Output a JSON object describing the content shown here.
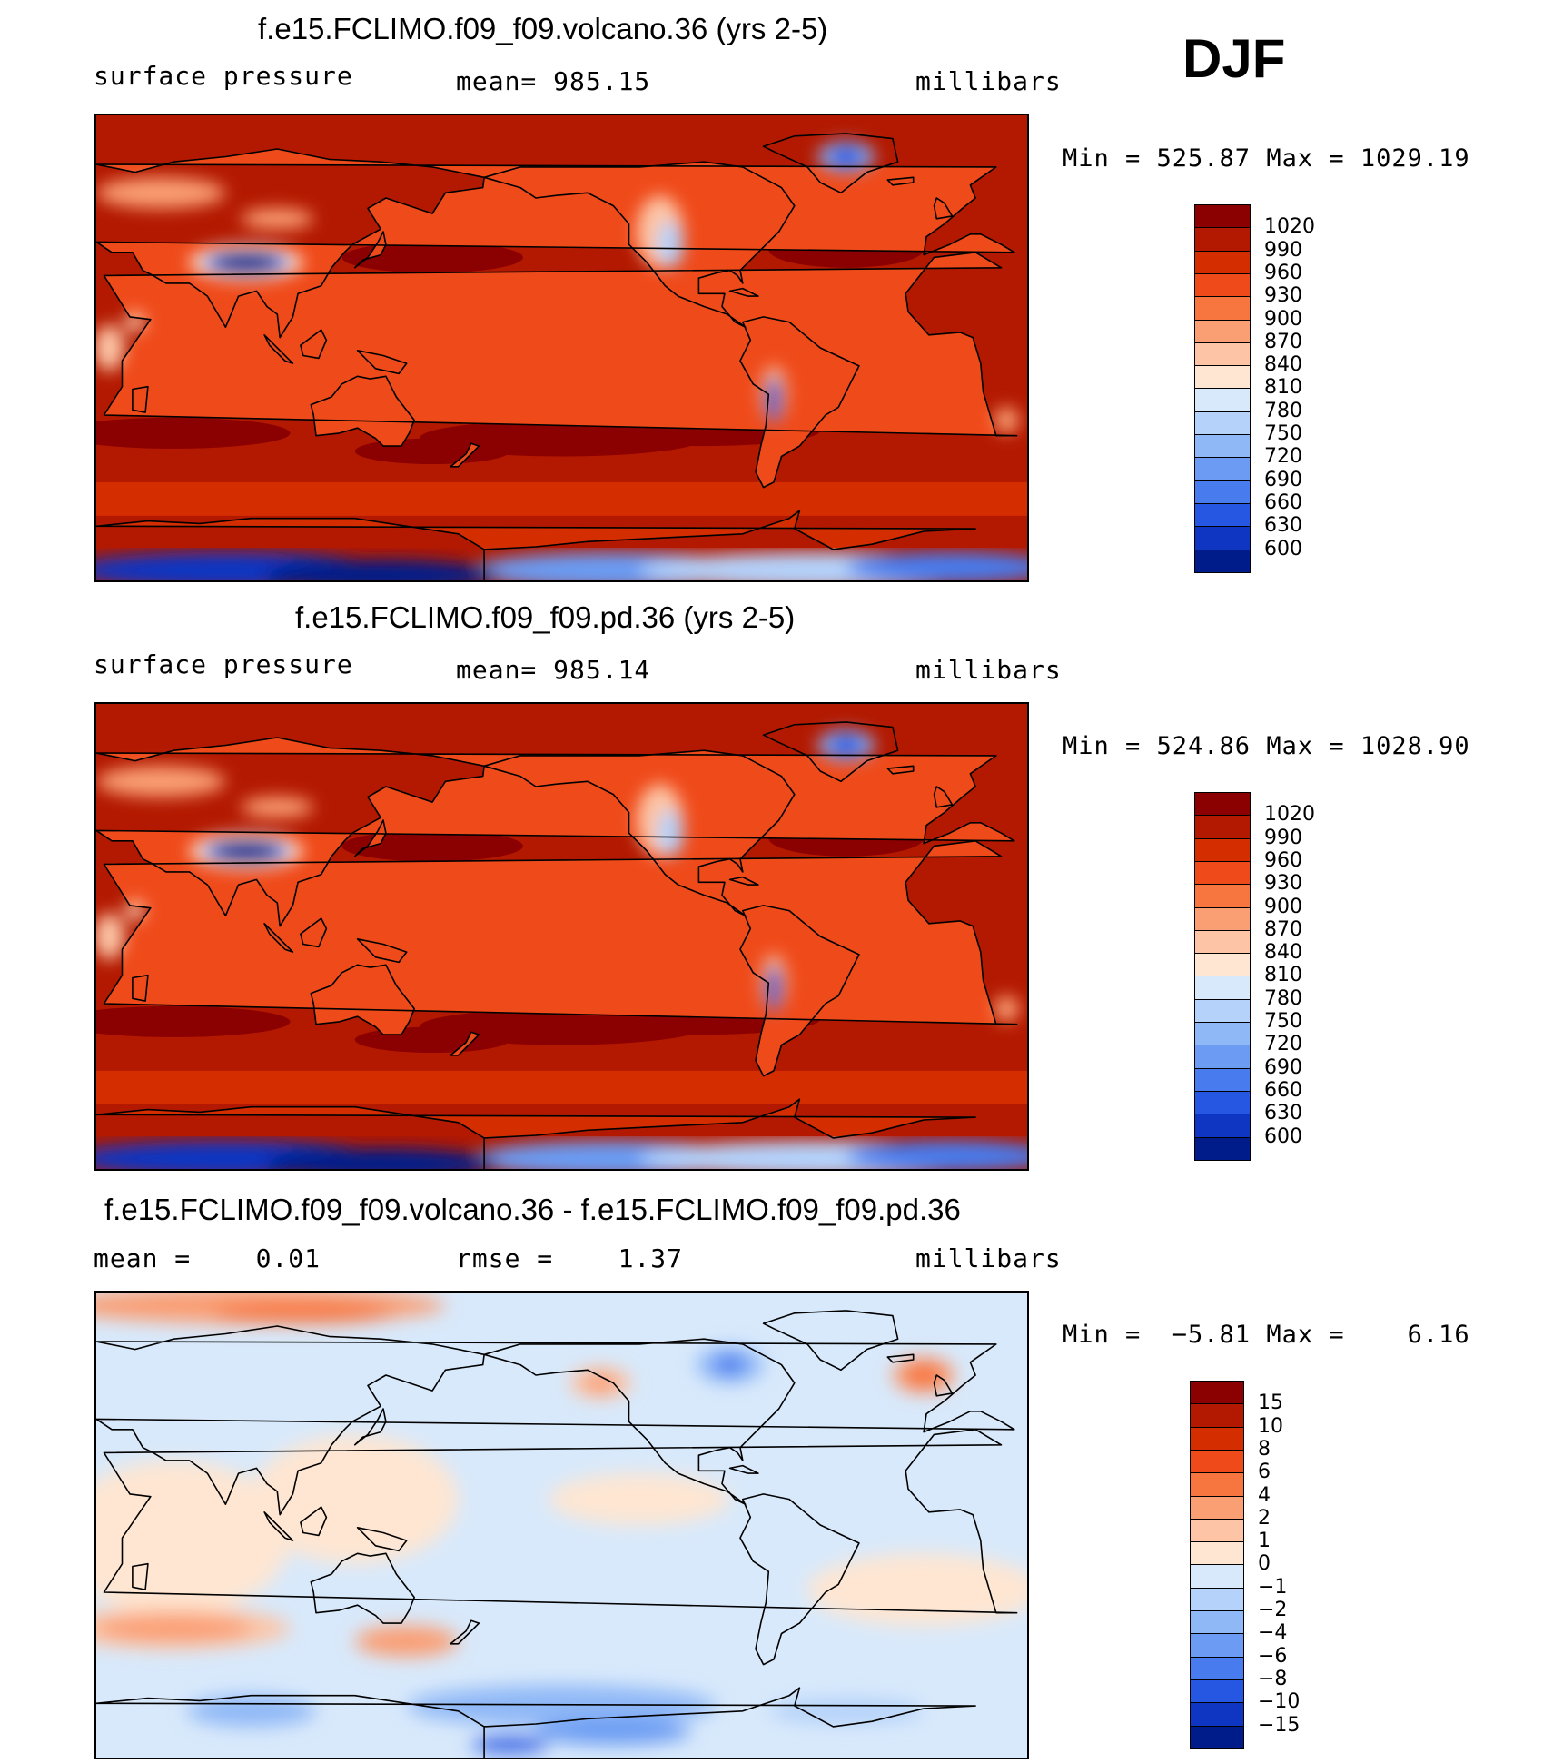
{
  "season": "DJF",
  "panels": [
    {
      "title": "f.e15.FCLIMO.f09_f09.volcano.36 (yrs 2-5)",
      "left_label": "surface pressure",
      "center_label": "mean= 985.15",
      "right_label": "millibars",
      "minmax": "Min = 525.87 Max = 1029.19",
      "kind": "abs",
      "colorbar": {
        "labels": [
          "1020",
          "990",
          "960",
          "930",
          "900",
          "870",
          "840",
          "810",
          "780",
          "750",
          "720",
          "690",
          "660",
          "630",
          "600"
        ],
        "colors": [
          "#8b0000",
          "#b31900",
          "#d42d00",
          "#ef4a1a",
          "#f7763f",
          "#fa9e73",
          "#fdc4a5",
          "#fee6d2",
          "#d8e9fb",
          "#b4d2fa",
          "#8fb8f7",
          "#6b9bf3",
          "#477bee",
          "#2657e3",
          "#0f36c2",
          "#001c8a"
        ]
      }
    },
    {
      "title": "f.e15.FCLIMO.f09_f09.pd.36 (yrs 2-5)",
      "left_label": "surface pressure",
      "center_label": "mean= 985.14",
      "right_label": "millibars",
      "minmax": "Min = 524.86 Max = 1028.90",
      "kind": "abs",
      "colorbar": {
        "labels": [
          "1020",
          "990",
          "960",
          "930",
          "900",
          "870",
          "840",
          "810",
          "780",
          "750",
          "720",
          "690",
          "660",
          "630",
          "600"
        ],
        "colors": [
          "#8b0000",
          "#b31900",
          "#d42d00",
          "#ef4a1a",
          "#f7763f",
          "#fa9e73",
          "#fdc4a5",
          "#fee6d2",
          "#d8e9fb",
          "#b4d2fa",
          "#8fb8f7",
          "#6b9bf3",
          "#477bee",
          "#2657e3",
          "#0f36c2",
          "#001c8a"
        ]
      }
    },
    {
      "title": "f.e15.FCLIMO.f09_f09.volcano.36 - f.e15.FCLIMO.f09_f09.pd.36",
      "left_label": "mean =    0.01",
      "center_label": "rmse =    1.37",
      "right_label": "millibars",
      "minmax": "Min =  −5.81 Max =    6.16",
      "kind": "diff",
      "colorbar": {
        "labels": [
          "15",
          "10",
          "8",
          "6",
          "4",
          "2",
          "1",
          "0",
          "−1",
          "−2",
          "−4",
          "−6",
          "−8",
          "−10",
          "−15"
        ],
        "colors": [
          "#8b0000",
          "#b31900",
          "#d42d00",
          "#ef4a1a",
          "#f7763f",
          "#fa9e73",
          "#fdc4a5",
          "#fee6d2",
          "#d8e9fb",
          "#b4d2fa",
          "#8fb8f7",
          "#6b9bf3",
          "#477bee",
          "#2657e3",
          "#0f36c2",
          "#001c8a"
        ]
      }
    }
  ]
}
